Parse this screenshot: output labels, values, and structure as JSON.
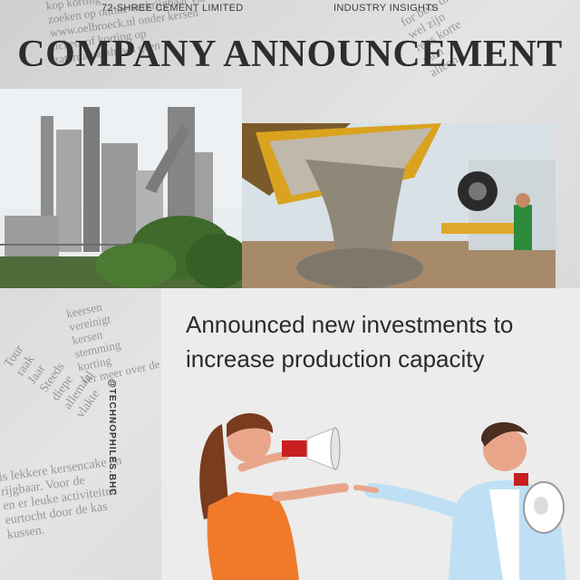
{
  "header": {
    "brand": "72-SHREE CEMENT LIMITED",
    "section": "INDUSTRY INSIGHTS",
    "headline": "COMPANY ANNOUNCEMENT"
  },
  "main": {
    "message": "Announced new investments to increase production capacity"
  },
  "footer": {
    "handle": "@TECHNOPHILES.BHC"
  },
  "images": {
    "plant_photo": "cement plant",
    "concrete_photo": "concrete pouring from mixer",
    "illustration": "woman and man with megaphones"
  },
  "background_text": {
    "top_left": [
      "kop korting",
      "zoeken op online verkrijgbaar via",
      "www.oelbroeck.nl onder kersen",
      "tickets of korting op",
      "zaterdagse shows geen"
    ],
    "top_right": [
      "for ben, die",
      "wel zijn",
      "rens korte",
      "men",
      "alleen"
    ],
    "lower_left": [
      "Tour",
      "raak",
      "Jaar",
      "Steeds",
      "diepe",
      "allemaal",
      "vlakte"
    ],
    "mid_left": [
      "keersen",
      "vereinigt",
      "kersen",
      "stemming",
      "korting",
      "Ver meer over de teel"
    ],
    "bottom_left": [
      "is lekkere kersencake en",
      "rijgbaar. Voor de",
      "en er leuke activiteiten",
      "eurtocht door de kas",
      "kussen."
    ]
  },
  "colors": {
    "background": "#d9d9d9",
    "panel": "#ececec",
    "headline": "#2e2e2e",
    "text": "#2a2a2a",
    "megaphone_red": "#c82020",
    "dress_orange": "#f07a2a",
    "shirt_blue": "#bfe0f4"
  }
}
